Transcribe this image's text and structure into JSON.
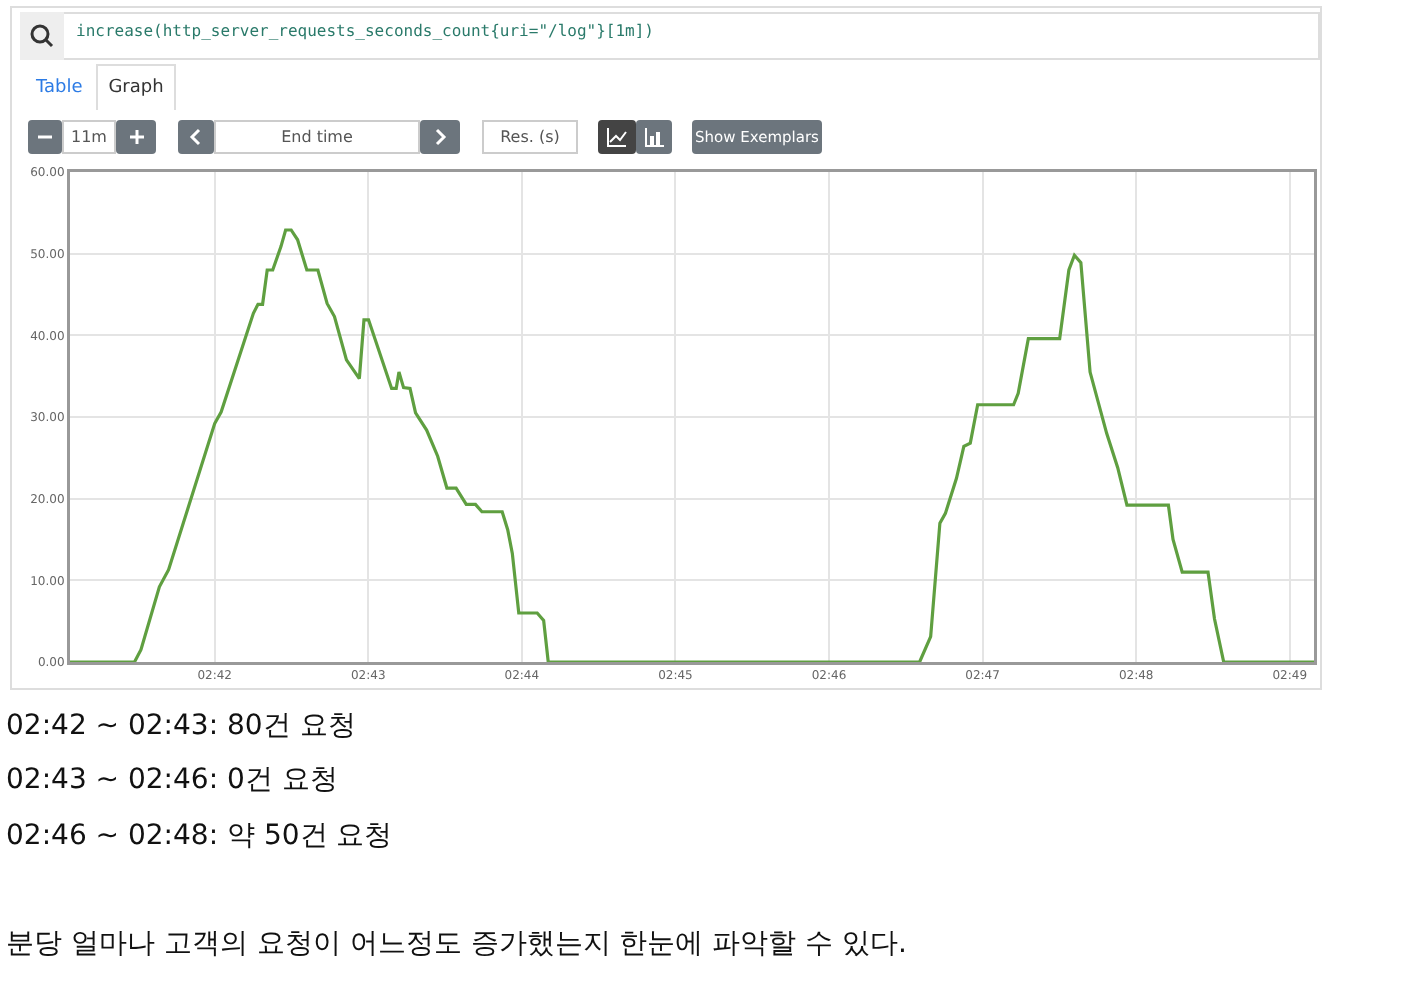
{
  "chart_data": {
    "type": "line",
    "annotations": [
      "increase(http_server_requests_seconds_count{uri=\"/log\"}[1m])",
      "Table",
      "Graph",
      "11m",
      "End time",
      "Res. (s)",
      "Show Exemplars",
      "02:42 ~ 02:43: 80건 요청",
      "02:43 ~ 02:46: 0건 요청",
      "02:46 ~ 02:48: 약 50건 요청",
      "분당 얼마나 고객의 요청이 어느정도 증가했는지 한눈에 파악할 수 있다."
    ],
    "series": [
      {
        "color": "#5f9f40",
        "x": [
          2.6843,
          2.6913,
          2.692,
          2.694,
          2.695,
          2.7,
          2.7007,
          2.7042,
          2.7047,
          2.7052,
          2.7057,
          2.7063,
          2.7072,
          2.7077,
          2.7083,
          2.709,
          2.71,
          2.7112,
          2.7122,
          2.713,
          2.7143,
          2.7157,
          2.7162,
          2.7167,
          2.7192,
          2.7197,
          2.72,
          2.7205,
          2.7212,
          2.7218,
          2.723,
          2.7242,
          2.7252,
          2.7262,
          2.7273,
          2.7283,
          2.729,
          2.7312,
          2.7318,
          2.7323,
          2.733,
          2.735,
          2.7357,
          2.7362,
          2.7765,
          2.7777,
          2.7787,
          2.7793,
          2.7805,
          2.7813,
          2.782,
          2.7828,
          2.7867,
          2.7872,
          2.7883,
          2.7917,
          2.7927,
          2.7933,
          2.794,
          2.795,
          2.7968,
          2.798,
          2.799,
          2.8035,
          2.804,
          2.805,
          2.8078,
          2.8085,
          2.8095,
          2.8193
        ],
        "values": [
          0,
          0,
          1.5,
          9.2,
          11.3,
          29.2,
          30.6,
          42.7,
          43.8,
          43.8,
          48,
          48,
          50.9,
          52.9,
          52.9,
          51.7,
          48,
          48,
          43.9,
          42.3,
          37,
          34.7,
          41.9,
          41.9,
          33.5,
          33.5,
          35.5,
          33.6,
          33.5,
          30.5,
          28.4,
          25.2,
          21.3,
          21.3,
          19.3,
          19.3,
          18.4,
          18.4,
          16.2,
          13.3,
          6,
          6,
          5.1,
          0,
          0,
          3.1,
          17,
          18.2,
          22.5,
          26.4,
          26.8,
          31.5,
          31.5,
          32.9,
          39.6,
          39.6,
          48,
          49.8,
          48.9,
          35.5,
          28,
          23.8,
          19.2,
          19.2,
          15,
          11,
          11,
          5.3,
          0,
          0
        ]
      }
    ],
    "xlim": [
      2.6843,
      2.8193
    ],
    "xticks": [
      {
        "value": 2.7,
        "label": "02:42"
      },
      {
        "value": 2.716667,
        "label": "02:43"
      },
      {
        "value": 2.733333,
        "label": "02:44"
      },
      {
        "value": 2.75,
        "label": "02:45"
      },
      {
        "value": 2.766667,
        "label": "02:46"
      },
      {
        "value": 2.783333,
        "label": "02:47"
      },
      {
        "value": 2.8,
        "label": "02:48"
      },
      {
        "value": 2.816667,
        "label": "02:49"
      }
    ],
    "ylim": [
      0,
      60
    ],
    "yticks": [
      {
        "value": 0,
        "label": "0.00"
      },
      {
        "value": 10,
        "label": "10.00"
      },
      {
        "value": 20,
        "label": "20.00"
      },
      {
        "value": 30,
        "label": "30.00"
      },
      {
        "value": 40,
        "label": "40.00"
      },
      {
        "value": 50,
        "label": "50.00"
      },
      {
        "value": 60,
        "label": "60.00"
      }
    ],
    "grid": true,
    "marker": "none",
    "line_style": "solid"
  }
}
